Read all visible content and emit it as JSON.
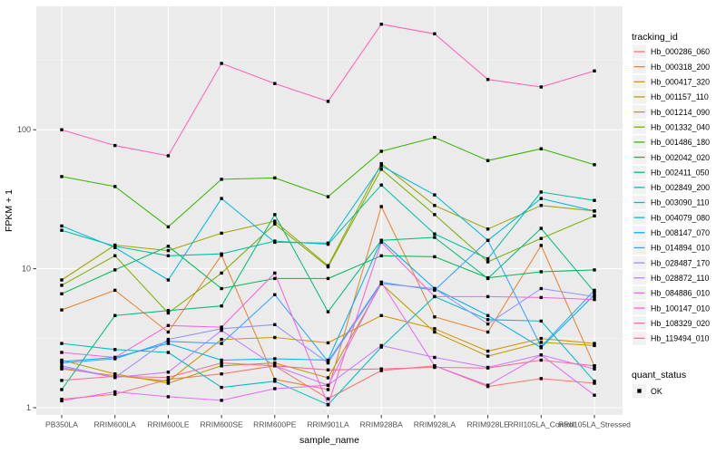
{
  "colors": {
    "panel_background": "#EBEBEB",
    "gridline": "#FFFFFF",
    "point": "#000000",
    "axis_text": "#4D4D4D",
    "axis_title": "#000000",
    "legend_key_background": "#F2F2F2",
    "tick_mark": "#333333"
  },
  "chart_data": {
    "type": "line",
    "title": "",
    "xlabel": "sample_name",
    "ylabel": "FPKM + 1",
    "y_scale": "log10",
    "grid": true,
    "legend_position": "right",
    "y_ticks": [
      1,
      10,
      100
    ],
    "y_tick_labels": [
      "1",
      "10",
      "100"
    ],
    "y_minor_ticks": [
      3.1623,
      31.623,
      316.23
    ],
    "ylim": [
      0.87,
      760
    ],
    "legend_title": "tracking_id",
    "quant_legend_title": "quant_status",
    "quant_legend_label": "OK",
    "categories": [
      "PB350LA",
      "RRIM600LA",
      "RRIM600LE",
      "RRIM600SE",
      "RRIM600PE",
      "RRIM901LA",
      "RRIM928BA",
      "RRIM928LA",
      "RRIM928LE",
      "RRII105LA_Control",
      "RRII105LA_Stressed"
    ],
    "series": [
      {
        "name": "Hb_000286_060",
        "color": "#F8766D",
        "values": [
          1.15,
          1.25,
          1.6,
          1.75,
          2.0,
          1.16,
          1.85,
          2.0,
          1.42,
          1.62,
          1.5
        ]
      },
      {
        "name": "Hb_000318_200",
        "color": "#EA8331",
        "values": [
          5.05,
          7.0,
          3.5,
          12.5,
          1.6,
          1.35,
          28.0,
          4.5,
          3.5,
          14.7,
          2.0
        ]
      },
      {
        "name": "Hb_000417_320",
        "color": "#D89000",
        "values": [
          1.9,
          1.7,
          1.55,
          3.1,
          3.2,
          2.93,
          4.6,
          3.7,
          2.55,
          3.15,
          2.9
        ]
      },
      {
        "name": "Hb_001157_110",
        "color": "#C09B00",
        "values": [
          2.2,
          1.75,
          1.5,
          2.0,
          2.1,
          1.64,
          7.8,
          3.5,
          2.35,
          2.95,
          2.8
        ]
      },
      {
        "name": "Hb_001214_090",
        "color": "#A3A500",
        "values": [
          8.3,
          14.8,
          13.5,
          18.0,
          22.0,
          10.5,
          57.0,
          28.5,
          19.3,
          28.5,
          26.0
        ]
      },
      {
        "name": "Hb_001332_040",
        "color": "#7CAE00",
        "values": [
          7.6,
          12.4,
          4.8,
          9.3,
          21.0,
          10.3,
          52.0,
          24.5,
          11.2,
          16.5,
          24.0
        ]
      },
      {
        "name": "Hb_001486_180",
        "color": "#39B600",
        "values": [
          46.0,
          39.0,
          20.0,
          44.0,
          45.0,
          33.0,
          70.0,
          88.0,
          60.0,
          73.0,
          56.0
        ]
      },
      {
        "name": "Hb_002042_020",
        "color": "#00BB4E",
        "values": [
          6.6,
          9.8,
          14.5,
          7.2,
          8.5,
          8.5,
          12.4,
          12.2,
          8.6,
          9.5,
          9.8
        ]
      },
      {
        "name": "Hb_002411_050",
        "color": "#00BF7D",
        "values": [
          1.35,
          4.6,
          5.0,
          5.4,
          24.5,
          4.9,
          16.0,
          16.8,
          8.5,
          19.5,
          6.8
        ]
      },
      {
        "name": "Hb_002849_200",
        "color": "#00C1A3",
        "values": [
          18.9,
          14.5,
          12.4,
          12.8,
          15.8,
          15.0,
          40.0,
          17.8,
          11.8,
          35.6,
          31.0
        ]
      },
      {
        "name": "Hb_003090_110",
        "color": "#00BFC4",
        "values": [
          2.9,
          2.62,
          2.5,
          1.4,
          1.55,
          1.05,
          2.73,
          6.3,
          4.3,
          4.2,
          1.55
        ]
      },
      {
        "name": "Hb_004079_080",
        "color": "#00BAE0",
        "values": [
          20.3,
          14.2,
          8.3,
          32.0,
          15.5,
          15.3,
          55.0,
          34.0,
          16.0,
          32.0,
          26.0
        ]
      },
      {
        "name": "Hb_008147_070",
        "color": "#00B0F6",
        "values": [
          2.15,
          2.3,
          2.9,
          2.2,
          2.25,
          2.2,
          16.0,
          7.2,
          4.6,
          2.7,
          6.5
        ]
      },
      {
        "name": "Hb_014894_010",
        "color": "#35A2FF",
        "values": [
          2.1,
          2.25,
          3.0,
          2.9,
          6.5,
          2.15,
          8.0,
          7.0,
          16.0,
          2.75,
          7.0
        ]
      },
      {
        "name": "Hb_028487_170",
        "color": "#9590FF",
        "values": [
          2.0,
          1.65,
          3.1,
          3.7,
          3.96,
          2.1,
          7.8,
          7.2,
          4.0,
          7.2,
          6.3
        ]
      },
      {
        "name": "Hb_028872_110",
        "color": "#C77CFF",
        "values": [
          1.95,
          1.65,
          1.8,
          3.6,
          2.0,
          1.45,
          2.8,
          2.3,
          1.95,
          2.4,
          1.9
        ]
      },
      {
        "name": "Hb_084886_010",
        "color": "#E76BF3",
        "values": [
          1.12,
          1.3,
          1.2,
          1.13,
          1.37,
          1.45,
          8.0,
          2.0,
          1.45,
          2.4,
          1.23
        ]
      },
      {
        "name": "Hb_100147_010",
        "color": "#FA62DB",
        "values": [
          2.5,
          2.3,
          3.9,
          3.8,
          9.3,
          1.05,
          15.5,
          6.3,
          6.3,
          6.2,
          6.0
        ]
      },
      {
        "name": "Hb_108329_020",
        "color": "#FF62BC",
        "values": [
          100.0,
          77.0,
          65.0,
          300.0,
          215.0,
          160.0,
          575.0,
          490.0,
          230.0,
          203.0,
          265.0
        ]
      },
      {
        "name": "Hb_119494_010",
        "color": "#FF6A98",
        "values": [
          1.57,
          1.68,
          1.65,
          2.1,
          2.0,
          1.87,
          1.9,
          1.95,
          1.93,
          2.2,
          2.0
        ]
      }
    ]
  }
}
